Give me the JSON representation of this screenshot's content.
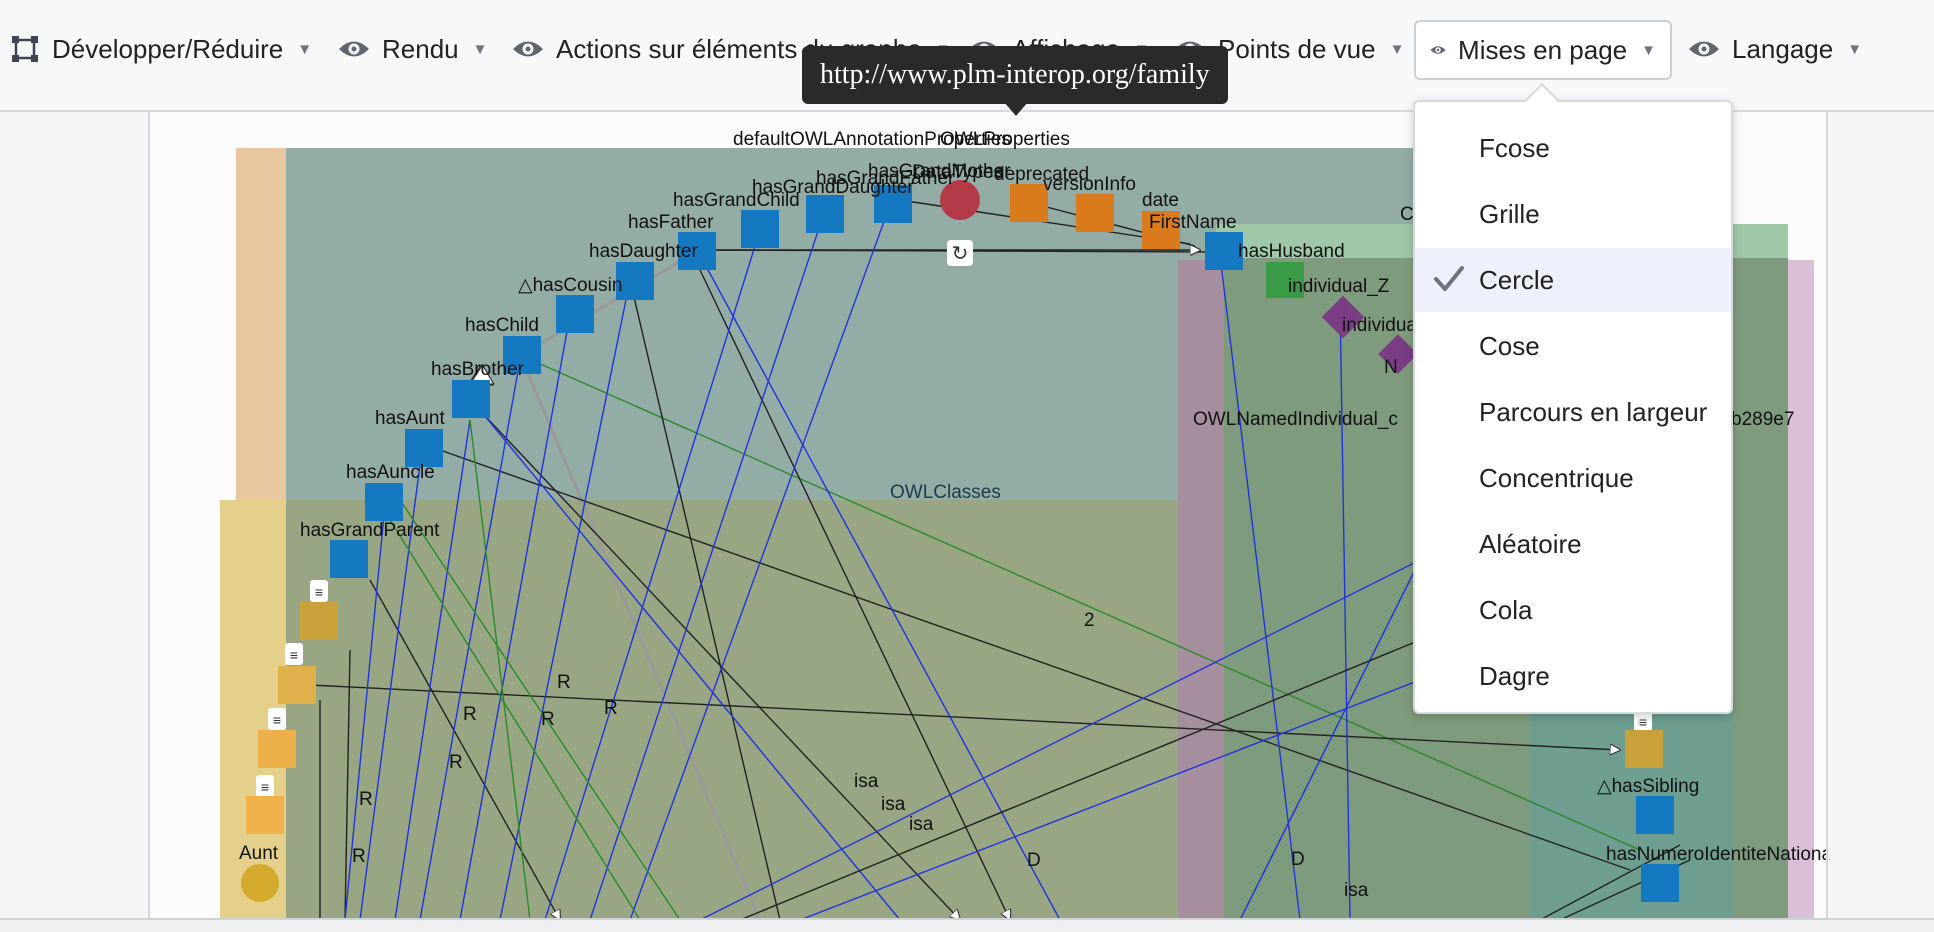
{
  "toolbar": {
    "items": [
      {
        "label": "Développer/Réduire",
        "icon": "expand-collapse-icon"
      },
      {
        "label": "Rendu",
        "icon": "eye-icon"
      },
      {
        "label": "Actions sur éléments du graphe",
        "icon": "eye-icon"
      },
      {
        "label": "Affichage",
        "icon": "eye-icon"
      },
      {
        "label": "Points de vue",
        "icon": "eye-icon"
      },
      {
        "label": "Mises en page",
        "icon": "eye-icon",
        "active": true
      },
      {
        "label": "Langage",
        "icon": "eye-icon"
      }
    ]
  },
  "tooltip": {
    "text": "http://www.plm-interop.org/family"
  },
  "layout_menu": {
    "selected": "Cercle",
    "items": [
      "Fcose",
      "Grille",
      "Cercle",
      "Cose",
      "Parcours en largeur",
      "Concentrique",
      "Aléatoire",
      "Cola",
      "Dagre"
    ]
  },
  "graph": {
    "group_labels": {
      "annotation_properties": "defaultOWLAnnotationProperties",
      "owl_properties": "OWLProperties",
      "data_types": "DataTypes",
      "owl_classes": "OWLClasses",
      "named_individual": "OWLNamedIndividual_c",
      "partial_id": "b289e7",
      "partial_c": "C"
    },
    "property_nodes": [
      "hasGrandMother",
      "hasGrandFather",
      "hasGrandDaughter",
      "hasGrandChild",
      "hasFather",
      "hasDaughter",
      "△hasCousin",
      "hasChild",
      "hasBrother",
      "hasAunt",
      "hasAuncle",
      "hasGrandParent",
      "FirstName",
      "hasHusband",
      "△hasSibling",
      "hasNumeroIdentiteNational"
    ],
    "annotation_nodes": [
      "deprecated",
      "versionInfo",
      "date"
    ],
    "individual_nodes": [
      "individual_Z",
      "individual_",
      "N"
    ],
    "class_nodes": [
      "Aunt"
    ],
    "edge_labels": [
      "R",
      "R",
      "R",
      "R",
      "R",
      "R",
      "R",
      "isa",
      "isa",
      "isa",
      "isa",
      "D",
      "D",
      "2"
    ],
    "expand_badge": "≡"
  },
  "colors": {
    "property_node": "#1579c1",
    "annotation_node": "#d97b1c",
    "datatype_node": "#b33a46",
    "individual_node": "#7a3d86",
    "class_node": "#c9a23c",
    "selection_highlight": "#eef0fb",
    "checkmark": "#6c7380"
  }
}
